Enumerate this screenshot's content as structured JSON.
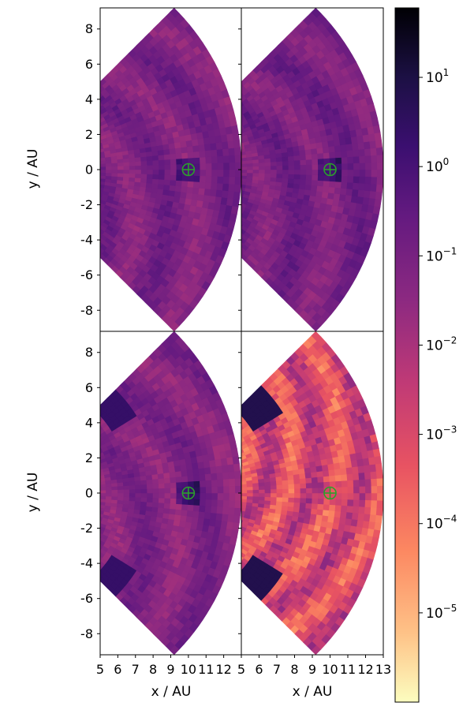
{
  "chart_data": [
    {
      "type": "heatmap",
      "panel": "top-left",
      "geometry": "annular-sector",
      "r_range": [
        5,
        13
      ],
      "theta_range_deg": [
        -45,
        45
      ],
      "planet": [
        10,
        0
      ],
      "xlim": [
        5,
        13
      ],
      "ylim": [
        -9.2,
        9.2
      ],
      "xlabel": "",
      "ylabel": "y / AU",
      "xticks": [],
      "yticks": [
        "8",
        "6",
        "4",
        "2",
        "0",
        "-2",
        "-4",
        "-6",
        "-8"
      ],
      "yticks_value": [
        8,
        6,
        4,
        2,
        0,
        -2,
        -4,
        -6,
        -8
      ],
      "base_value": 0.08
    },
    {
      "type": "heatmap",
      "panel": "top-right",
      "geometry": "annular-sector",
      "r_range": [
        5,
        13
      ],
      "theta_range_deg": [
        -45,
        45
      ],
      "planet": [
        10,
        0
      ],
      "xlim": [
        5,
        13
      ],
      "ylim": [
        -9.2,
        9.2
      ],
      "xlabel": "",
      "ylabel": "",
      "xticks": [],
      "yticks": [],
      "base_value": 0.1
    },
    {
      "type": "heatmap",
      "panel": "bottom-left",
      "geometry": "annular-sector",
      "r_range": [
        5,
        13
      ],
      "theta_range_deg": [
        -45,
        45
      ],
      "planet": [
        10,
        0
      ],
      "xlim": [
        5,
        13
      ],
      "ylim": [
        -9.2,
        9.2
      ],
      "xlabel": "x / AU",
      "ylabel": "y / AU",
      "xticks": [
        "5",
        "6",
        "7",
        "8",
        "9",
        "10",
        "11",
        "12"
      ],
      "xticks_value": [
        5,
        6,
        7,
        8,
        9,
        10,
        11,
        12
      ],
      "yticks": [
        "8",
        "6",
        "4",
        "2",
        "0",
        "-2",
        "-4",
        "-6",
        "-8"
      ],
      "yticks_value": [
        8,
        6,
        4,
        2,
        0,
        -2,
        -4,
        -6,
        -8
      ],
      "base_value": 0.06
    },
    {
      "type": "heatmap",
      "panel": "bottom-right",
      "geometry": "annular-sector",
      "r_range": [
        5,
        13
      ],
      "theta_range_deg": [
        -45,
        45
      ],
      "planet": [
        10,
        0
      ],
      "xlim": [
        5,
        13
      ],
      "ylim": [
        -9.2,
        9.2
      ],
      "xlabel": "x / AU",
      "ylabel": "",
      "xticks": [
        "5",
        "6",
        "7",
        "8",
        "9",
        "10",
        "11",
        "12",
        "13"
      ],
      "xticks_value": [
        5,
        6,
        7,
        8,
        9,
        10,
        11,
        12,
        13
      ],
      "yticks": [],
      "base_value": 0.001
    },
    {
      "type": "colorbar",
      "scale": "log",
      "colormap": "magma_r",
      "range": [
        1e-06,
        60
      ],
      "ticks": [
        {
          "value": 10,
          "base": "10",
          "exp": "1"
        },
        {
          "value": 1,
          "base": "10",
          "exp": "0"
        },
        {
          "value": 0.1,
          "base": "10",
          "exp": "−1"
        },
        {
          "value": 0.01,
          "base": "10",
          "exp": "−2"
        },
        {
          "value": 0.001,
          "base": "10",
          "exp": "−3"
        },
        {
          "value": 0.0001,
          "base": "10",
          "exp": "−4"
        },
        {
          "value": 1e-05,
          "base": "10",
          "exp": "−5"
        }
      ]
    }
  ],
  "colors": {
    "planet_marker": "#2ca02c",
    "axes": "#000000",
    "background": "#ffffff"
  }
}
